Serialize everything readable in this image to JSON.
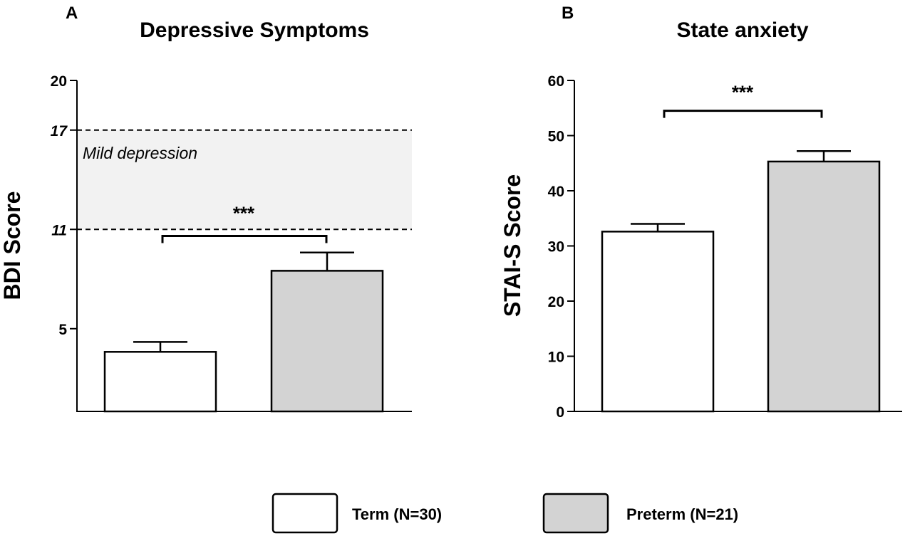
{
  "chart_data": [
    {
      "type": "bar",
      "panel_label": "A",
      "title": "Depressive Symptoms",
      "ylabel": "BDI Score",
      "xlabel": "",
      "ylim": [
        0,
        20
      ],
      "yticks": [
        5,
        20
      ],
      "threshold_ticks": [
        11,
        17
      ],
      "categories": [
        "Term (N=30)",
        "Preterm (N=21)"
      ],
      "values": [
        3.6,
        8.5
      ],
      "errors": [
        0.6,
        1.1
      ],
      "colors": [
        "#ffffff",
        "#d3d3d3"
      ],
      "band": {
        "from": 11,
        "to": 17,
        "label": "Mild depression",
        "color": "#f2f2f2"
      },
      "significance": {
        "label": "***",
        "bracket_level": 10.6,
        "label_level": 12.2
      }
    },
    {
      "type": "bar",
      "panel_label": "B",
      "title": "State anxiety",
      "ylabel": "STAI-S Score",
      "xlabel": "",
      "ylim": [
        0,
        60
      ],
      "yticks": [
        0,
        10,
        20,
        30,
        40,
        50,
        60
      ],
      "categories": [
        "Term (N=30)",
        "Preterm (N=21)"
      ],
      "values": [
        32.6,
        45.3
      ],
      "errors": [
        1.4,
        1.9
      ],
      "colors": [
        "#ffffff",
        "#d3d3d3"
      ],
      "significance": {
        "label": "***",
        "bracket_level": 54.5,
        "label_level": 58.5
      }
    }
  ],
  "legend": {
    "items": [
      {
        "label": "Term (N=30)",
        "color": "#ffffff"
      },
      {
        "label": "Preterm (N=21)",
        "color": "#d3d3d3"
      }
    ]
  }
}
